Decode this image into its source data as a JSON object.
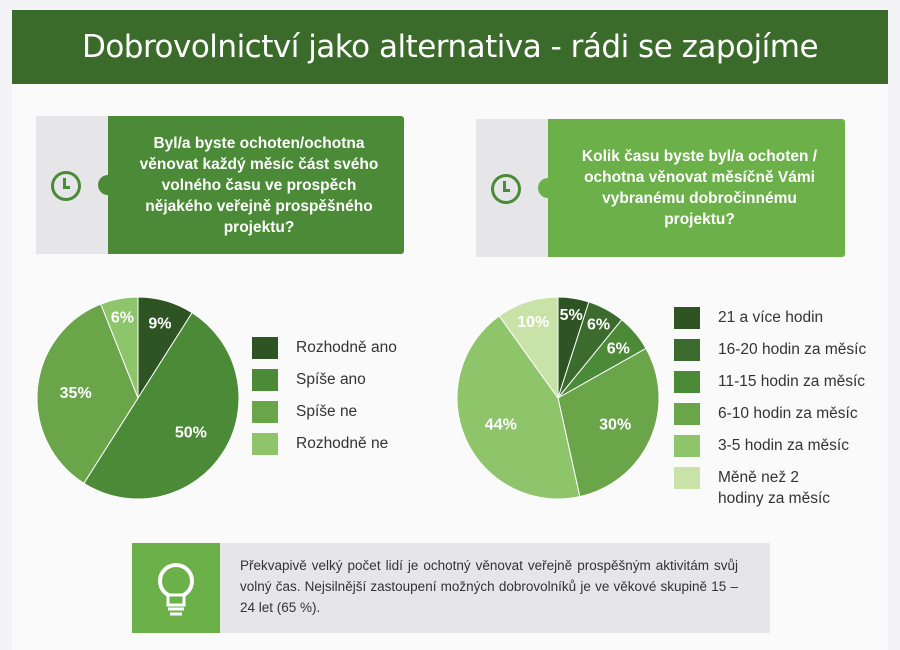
{
  "header": {
    "title": "Dobrovolnictví jako alternativa - rádi se zapojíme"
  },
  "question1": {
    "text": "Byl/a byste ochoten/ochotna věnovat každý měsíc část svého volného času ve prospěch nějakého veřejně prospěšného projektu?",
    "icon": "clock-icon"
  },
  "question2": {
    "text": "Kolik času byste byl/a ochoten / ochotna věnovat měsíčně Vámi vybranému dobročinnému projektu?",
    "icon": "clock-icon"
  },
  "chart_data": [
    {
      "type": "pie",
      "title": "",
      "categories": [
        "Rozhodně ano",
        "Spíše ano",
        "Spíše ne",
        "Rozhodně ne"
      ],
      "values": [
        9,
        50,
        35,
        6
      ],
      "labels": [
        "9%",
        "50%",
        "35%",
        "6%"
      ],
      "colors": [
        "#2e5424",
        "#4b8a36",
        "#6aa54a",
        "#8fc56a"
      ],
      "legend_position": "right"
    },
    {
      "type": "pie",
      "title": "",
      "categories": [
        "21 a více hodin",
        "16-20 hodin za měsíc",
        "11-15 hodin za měsíc",
        "6-10 hodin za měsíc",
        "3-5 hodin za měsíc",
        "Měně než 2 hodiny za měsíc"
      ],
      "values": [
        5,
        6,
        6,
        30,
        44,
        10
      ],
      "labels": [
        "5%",
        "6%",
        "6%",
        "30%",
        "44%",
        "10%"
      ],
      "colors": [
        "#2e5424",
        "#3c6b2e",
        "#4b8a36",
        "#6aa54a",
        "#8fc56a",
        "#c8e2a8"
      ],
      "legend_position": "right"
    }
  ],
  "note": {
    "icon": "lightbulb-icon",
    "text": "Překvapivě velký počet lidí je ochotný věnovat veřejně prospěšným aktivitám svůj volný čas. Nejsilnější zastoupení možných dobrovolníků je ve věkové skupině 15 – 24 let (65 %)."
  }
}
